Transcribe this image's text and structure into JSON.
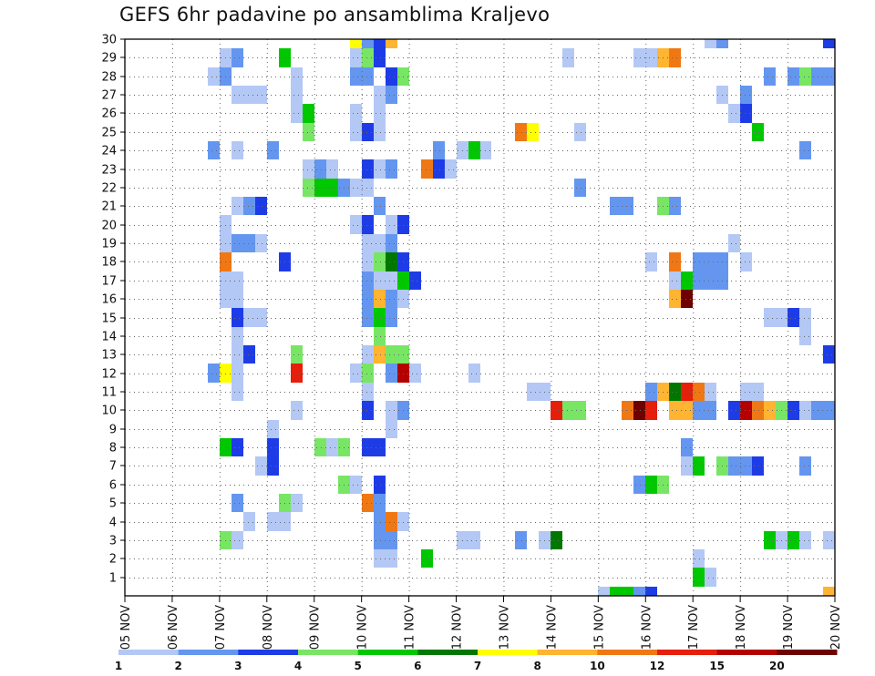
{
  "chart_data": {
    "type": "heatmap",
    "title": "GEFS 6hr padavine po ansamblima Kraljevo",
    "xlabel": "",
    "ylabel": "",
    "x_tick_labels": [
      "05 NOV",
      "06 NOV",
      "07 NOV",
      "08 NOV",
      "09 NOV",
      "10 NOV",
      "11 NOV",
      "12 NOV",
      "13 NOV",
      "14 NOV",
      "15 NOV",
      "16 NOV",
      "17 NOV",
      "18 NOV",
      "19 NOV",
      "20 NOV"
    ],
    "y_tick_labels": [
      "1",
      "2",
      "3",
      "4",
      "5",
      "6",
      "7",
      "8",
      "9",
      "10",
      "11",
      "12",
      "13",
      "14",
      "15",
      "16",
      "17",
      "18",
      "19",
      "20",
      "21",
      "22",
      "23",
      "24",
      "25",
      "26",
      "27",
      "28",
      "29",
      "30"
    ],
    "x_range_days": [
      0,
      15
    ],
    "y_range_members": [
      0,
      30
    ],
    "time_step_days": 0.25,
    "legend": {
      "labels": [
        "1",
        "2",
        "3",
        "4",
        "5",
        "6",
        "7",
        "8",
        "10",
        "12",
        "15",
        "20"
      ],
      "colors": [
        "#b4c8f5",
        "#6496f0",
        "#1e3ce6",
        "#78e664",
        "#00c800",
        "#007800",
        "#ffff00",
        "#ffb432",
        "#f07814",
        "#e61e0a",
        "#b40000",
        "#6e0000"
      ]
    },
    "cells": [
      [
        30,
        4.75,
        7
      ],
      [
        30,
        5.0,
        2
      ],
      [
        30,
        5.25,
        3
      ],
      [
        30,
        5.5,
        8
      ],
      [
        30,
        12.25,
        1
      ],
      [
        30,
        12.5,
        2
      ],
      [
        30,
        14.75,
        3
      ],
      [
        29,
        2.0,
        1
      ],
      [
        29,
        2.25,
        2
      ],
      [
        29,
        3.25,
        5
      ],
      [
        29,
        4.75,
        1
      ],
      [
        29,
        5.0,
        4
      ],
      [
        29,
        5.25,
        3
      ],
      [
        29,
        9.25,
        1
      ],
      [
        29,
        10.75,
        1
      ],
      [
        29,
        11.0,
        1
      ],
      [
        29,
        11.25,
        8
      ],
      [
        29,
        11.5,
        9
      ],
      [
        28,
        1.75,
        1
      ],
      [
        28,
        2.0,
        2
      ],
      [
        28,
        3.5,
        1
      ],
      [
        28,
        4.75,
        2
      ],
      [
        28,
        5.0,
        2
      ],
      [
        28,
        5.5,
        3
      ],
      [
        28,
        5.75,
        4
      ],
      [
        28,
        13.5,
        2
      ],
      [
        28,
        14.0,
        2
      ],
      [
        28,
        14.25,
        4
      ],
      [
        28,
        14.5,
        2
      ],
      [
        28,
        14.75,
        2
      ],
      [
        27,
        2.25,
        1
      ],
      [
        27,
        2.5,
        1
      ],
      [
        27,
        2.75,
        1
      ],
      [
        27,
        3.5,
        1
      ],
      [
        27,
        5.25,
        1
      ],
      [
        27,
        5.5,
        2
      ],
      [
        27,
        12.5,
        1
      ],
      [
        27,
        13.0,
        2
      ],
      [
        26,
        3.5,
        1
      ],
      [
        26,
        3.75,
        5
      ],
      [
        26,
        4.75,
        1
      ],
      [
        26,
        5.25,
        1
      ],
      [
        26,
        12.75,
        1
      ],
      [
        26,
        13.0,
        3
      ],
      [
        25,
        3.75,
        4
      ],
      [
        25,
        4.75,
        1
      ],
      [
        25,
        5.0,
        3
      ],
      [
        25,
        5.25,
        1
      ],
      [
        25,
        8.25,
        9
      ],
      [
        25,
        8.5,
        7
      ],
      [
        25,
        9.5,
        1
      ],
      [
        25,
        13.25,
        5
      ],
      [
        24,
        1.75,
        2
      ],
      [
        24,
        2.25,
        1
      ],
      [
        24,
        3.0,
        2
      ],
      [
        24,
        6.5,
        2
      ],
      [
        24,
        7.0,
        1
      ],
      [
        24,
        7.25,
        5
      ],
      [
        24,
        7.5,
        1
      ],
      [
        24,
        14.25,
        2
      ],
      [
        23,
        3.75,
        1
      ],
      [
        23,
        4.0,
        2
      ],
      [
        23,
        4.25,
        1
      ],
      [
        23,
        5.0,
        3
      ],
      [
        23,
        5.25,
        1
      ],
      [
        23,
        5.5,
        2
      ],
      [
        23,
        6.25,
        9
      ],
      [
        23,
        6.5,
        3
      ],
      [
        23,
        6.75,
        1
      ],
      [
        22,
        3.75,
        4
      ],
      [
        22,
        4.0,
        5
      ],
      [
        22,
        4.25,
        5
      ],
      [
        22,
        4.5,
        2
      ],
      [
        22,
        4.75,
        1
      ],
      [
        22,
        5.0,
        1
      ],
      [
        22,
        9.5,
        2
      ],
      [
        21,
        2.25,
        1
      ],
      [
        21,
        2.5,
        2
      ],
      [
        21,
        2.75,
        3
      ],
      [
        21,
        5.25,
        2
      ],
      [
        21,
        10.25,
        2
      ],
      [
        21,
        10.5,
        2
      ],
      [
        21,
        11.25,
        4
      ],
      [
        21,
        11.5,
        2
      ],
      [
        20,
        2.0,
        1
      ],
      [
        20,
        4.75,
        1
      ],
      [
        20,
        5.0,
        3
      ],
      [
        20,
        5.5,
        1
      ],
      [
        20,
        5.75,
        3
      ],
      [
        19,
        2.0,
        1
      ],
      [
        19,
        2.25,
        2
      ],
      [
        19,
        2.5,
        2
      ],
      [
        19,
        2.75,
        1
      ],
      [
        19,
        5.0,
        1
      ],
      [
        19,
        5.25,
        1
      ],
      [
        19,
        5.5,
        2
      ],
      [
        19,
        12.75,
        1
      ],
      [
        18,
        2.0,
        9
      ],
      [
        18,
        3.25,
        3
      ],
      [
        18,
        5.0,
        1
      ],
      [
        18,
        5.25,
        4
      ],
      [
        18,
        5.5,
        6
      ],
      [
        18,
        5.75,
        3
      ],
      [
        18,
        11.0,
        1
      ],
      [
        18,
        11.5,
        9
      ],
      [
        18,
        12.0,
        2
      ],
      [
        18,
        12.25,
        2
      ],
      [
        18,
        12.5,
        2
      ],
      [
        18,
        13.0,
        1
      ],
      [
        17,
        2.0,
        1
      ],
      [
        17,
        2.25,
        1
      ],
      [
        17,
        5.0,
        2
      ],
      [
        17,
        5.25,
        1
      ],
      [
        17,
        5.5,
        1
      ],
      [
        17,
        5.75,
        5
      ],
      [
        17,
        6.0,
        3
      ],
      [
        17,
        11.5,
        1
      ],
      [
        17,
        11.75,
        5
      ],
      [
        17,
        12.0,
        2
      ],
      [
        17,
        12.25,
        2
      ],
      [
        17,
        12.5,
        2
      ],
      [
        16,
        2.0,
        1
      ],
      [
        16,
        2.25,
        1
      ],
      [
        16,
        5.0,
        2
      ],
      [
        16,
        5.25,
        8
      ],
      [
        16,
        5.5,
        2
      ],
      [
        16,
        5.75,
        1
      ],
      [
        16,
        11.5,
        8
      ],
      [
        16,
        11.75,
        12
      ],
      [
        15,
        2.25,
        3
      ],
      [
        15,
        2.5,
        1
      ],
      [
        15,
        2.75,
        1
      ],
      [
        15,
        5.0,
        2
      ],
      [
        15,
        5.25,
        5
      ],
      [
        15,
        5.5,
        2
      ],
      [
        15,
        13.5,
        1
      ],
      [
        15,
        13.75,
        1
      ],
      [
        15,
        14.0,
        3
      ],
      [
        15,
        14.25,
        1
      ],
      [
        14,
        2.25,
        1
      ],
      [
        14,
        5.25,
        4
      ],
      [
        14,
        14.25,
        1
      ],
      [
        13,
        2.25,
        1
      ],
      [
        13,
        2.5,
        3
      ],
      [
        13,
        3.5,
        4
      ],
      [
        13,
        5.0,
        1
      ],
      [
        13,
        5.25,
        8
      ],
      [
        13,
        5.5,
        4
      ],
      [
        13,
        5.75,
        4
      ],
      [
        13,
        14.75,
        3
      ],
      [
        12,
        1.75,
        2
      ],
      [
        12,
        2.0,
        7
      ],
      [
        12,
        2.25,
        1
      ],
      [
        12,
        3.5,
        10
      ],
      [
        12,
        4.75,
        1
      ],
      [
        12,
        5.0,
        4
      ],
      [
        12,
        5.5,
        2
      ],
      [
        12,
        5.75,
        11
      ],
      [
        12,
        6.0,
        1
      ],
      [
        12,
        7.25,
        1
      ],
      [
        11,
        2.25,
        1
      ],
      [
        11,
        5.0,
        1
      ],
      [
        11,
        8.5,
        1
      ],
      [
        11,
        8.75,
        1
      ],
      [
        11,
        11.0,
        2
      ],
      [
        11,
        11.25,
        8
      ],
      [
        11,
        11.5,
        6
      ],
      [
        11,
        11.75,
        10
      ],
      [
        11,
        12.0,
        9
      ],
      [
        11,
        12.25,
        1
      ],
      [
        11,
        13.0,
        1
      ],
      [
        11,
        13.25,
        1
      ],
      [
        10,
        3.5,
        1
      ],
      [
        10,
        5.0,
        3
      ],
      [
        10,
        5.5,
        1
      ],
      [
        10,
        5.75,
        2
      ],
      [
        10,
        9.0,
        10
      ],
      [
        10,
        9.25,
        4
      ],
      [
        10,
        9.5,
        4
      ],
      [
        10,
        10.5,
        9
      ],
      [
        10,
        10.75,
        12
      ],
      [
        10,
        11.0,
        10
      ],
      [
        10,
        11.5,
        8
      ],
      [
        10,
        11.75,
        8
      ],
      [
        10,
        12.0,
        2
      ],
      [
        10,
        12.25,
        2
      ],
      [
        10,
        12.75,
        3
      ],
      [
        10,
        13.0,
        11
      ],
      [
        10,
        13.25,
        9
      ],
      [
        10,
        13.5,
        8
      ],
      [
        10,
        13.75,
        4
      ],
      [
        10,
        14.0,
        3
      ],
      [
        10,
        14.25,
        1
      ],
      [
        10,
        14.5,
        2
      ],
      [
        10,
        14.75,
        2
      ],
      [
        9,
        3.0,
        1
      ],
      [
        9,
        5.5,
        1
      ],
      [
        8,
        2.0,
        5
      ],
      [
        8,
        2.25,
        3
      ],
      [
        8,
        3.0,
        3
      ],
      [
        8,
        4.0,
        4
      ],
      [
        8,
        4.25,
        1
      ],
      [
        8,
        4.5,
        4
      ],
      [
        8,
        5.0,
        3
      ],
      [
        8,
        5.25,
        3
      ],
      [
        8,
        11.75,
        2
      ],
      [
        7,
        2.75,
        1
      ],
      [
        7,
        3.0,
        3
      ],
      [
        7,
        11.75,
        1
      ],
      [
        7,
        12.0,
        5
      ],
      [
        7,
        12.5,
        4
      ],
      [
        7,
        12.75,
        2
      ],
      [
        7,
        13.0,
        2
      ],
      [
        7,
        13.25,
        3
      ],
      [
        7,
        14.25,
        2
      ],
      [
        6,
        4.5,
        4
      ],
      [
        6,
        4.75,
        1
      ],
      [
        6,
        5.25,
        3
      ],
      [
        6,
        10.75,
        2
      ],
      [
        6,
        11.0,
        5
      ],
      [
        6,
        11.25,
        4
      ],
      [
        5,
        2.25,
        2
      ],
      [
        5,
        3.25,
        4
      ],
      [
        5,
        3.5,
        1
      ],
      [
        5,
        5.0,
        9
      ],
      [
        5,
        5.25,
        2
      ],
      [
        4,
        2.5,
        1
      ],
      [
        4,
        3.0,
        1
      ],
      [
        4,
        3.25,
        1
      ],
      [
        4,
        5.25,
        2
      ],
      [
        4,
        5.5,
        9
      ],
      [
        4,
        5.75,
        1
      ],
      [
        3,
        2.0,
        4
      ],
      [
        3,
        2.25,
        1
      ],
      [
        3,
        5.25,
        2
      ],
      [
        3,
        5.5,
        2
      ],
      [
        3,
        7.0,
        1
      ],
      [
        3,
        7.25,
        1
      ],
      [
        3,
        8.25,
        2
      ],
      [
        3,
        8.75,
        1
      ],
      [
        3,
        9.0,
        6
      ],
      [
        3,
        13.5,
        5
      ],
      [
        3,
        13.75,
        1
      ],
      [
        3,
        14.0,
        5
      ],
      [
        3,
        14.25,
        1
      ],
      [
        3,
        14.75,
        1
      ],
      [
        2,
        5.25,
        1
      ],
      [
        2,
        5.5,
        1
      ],
      [
        2,
        6.25,
        5
      ],
      [
        2,
        12.0,
        1
      ],
      [
        1,
        12.0,
        5
      ],
      [
        1,
        12.25,
        1
      ],
      [
        0,
        10.0,
        1
      ],
      [
        0,
        10.25,
        5
      ],
      [
        0,
        10.5,
        5
      ],
      [
        0,
        10.75,
        2
      ],
      [
        0,
        11.0,
        3
      ],
      [
        0,
        14.75,
        8
      ]
    ]
  }
}
